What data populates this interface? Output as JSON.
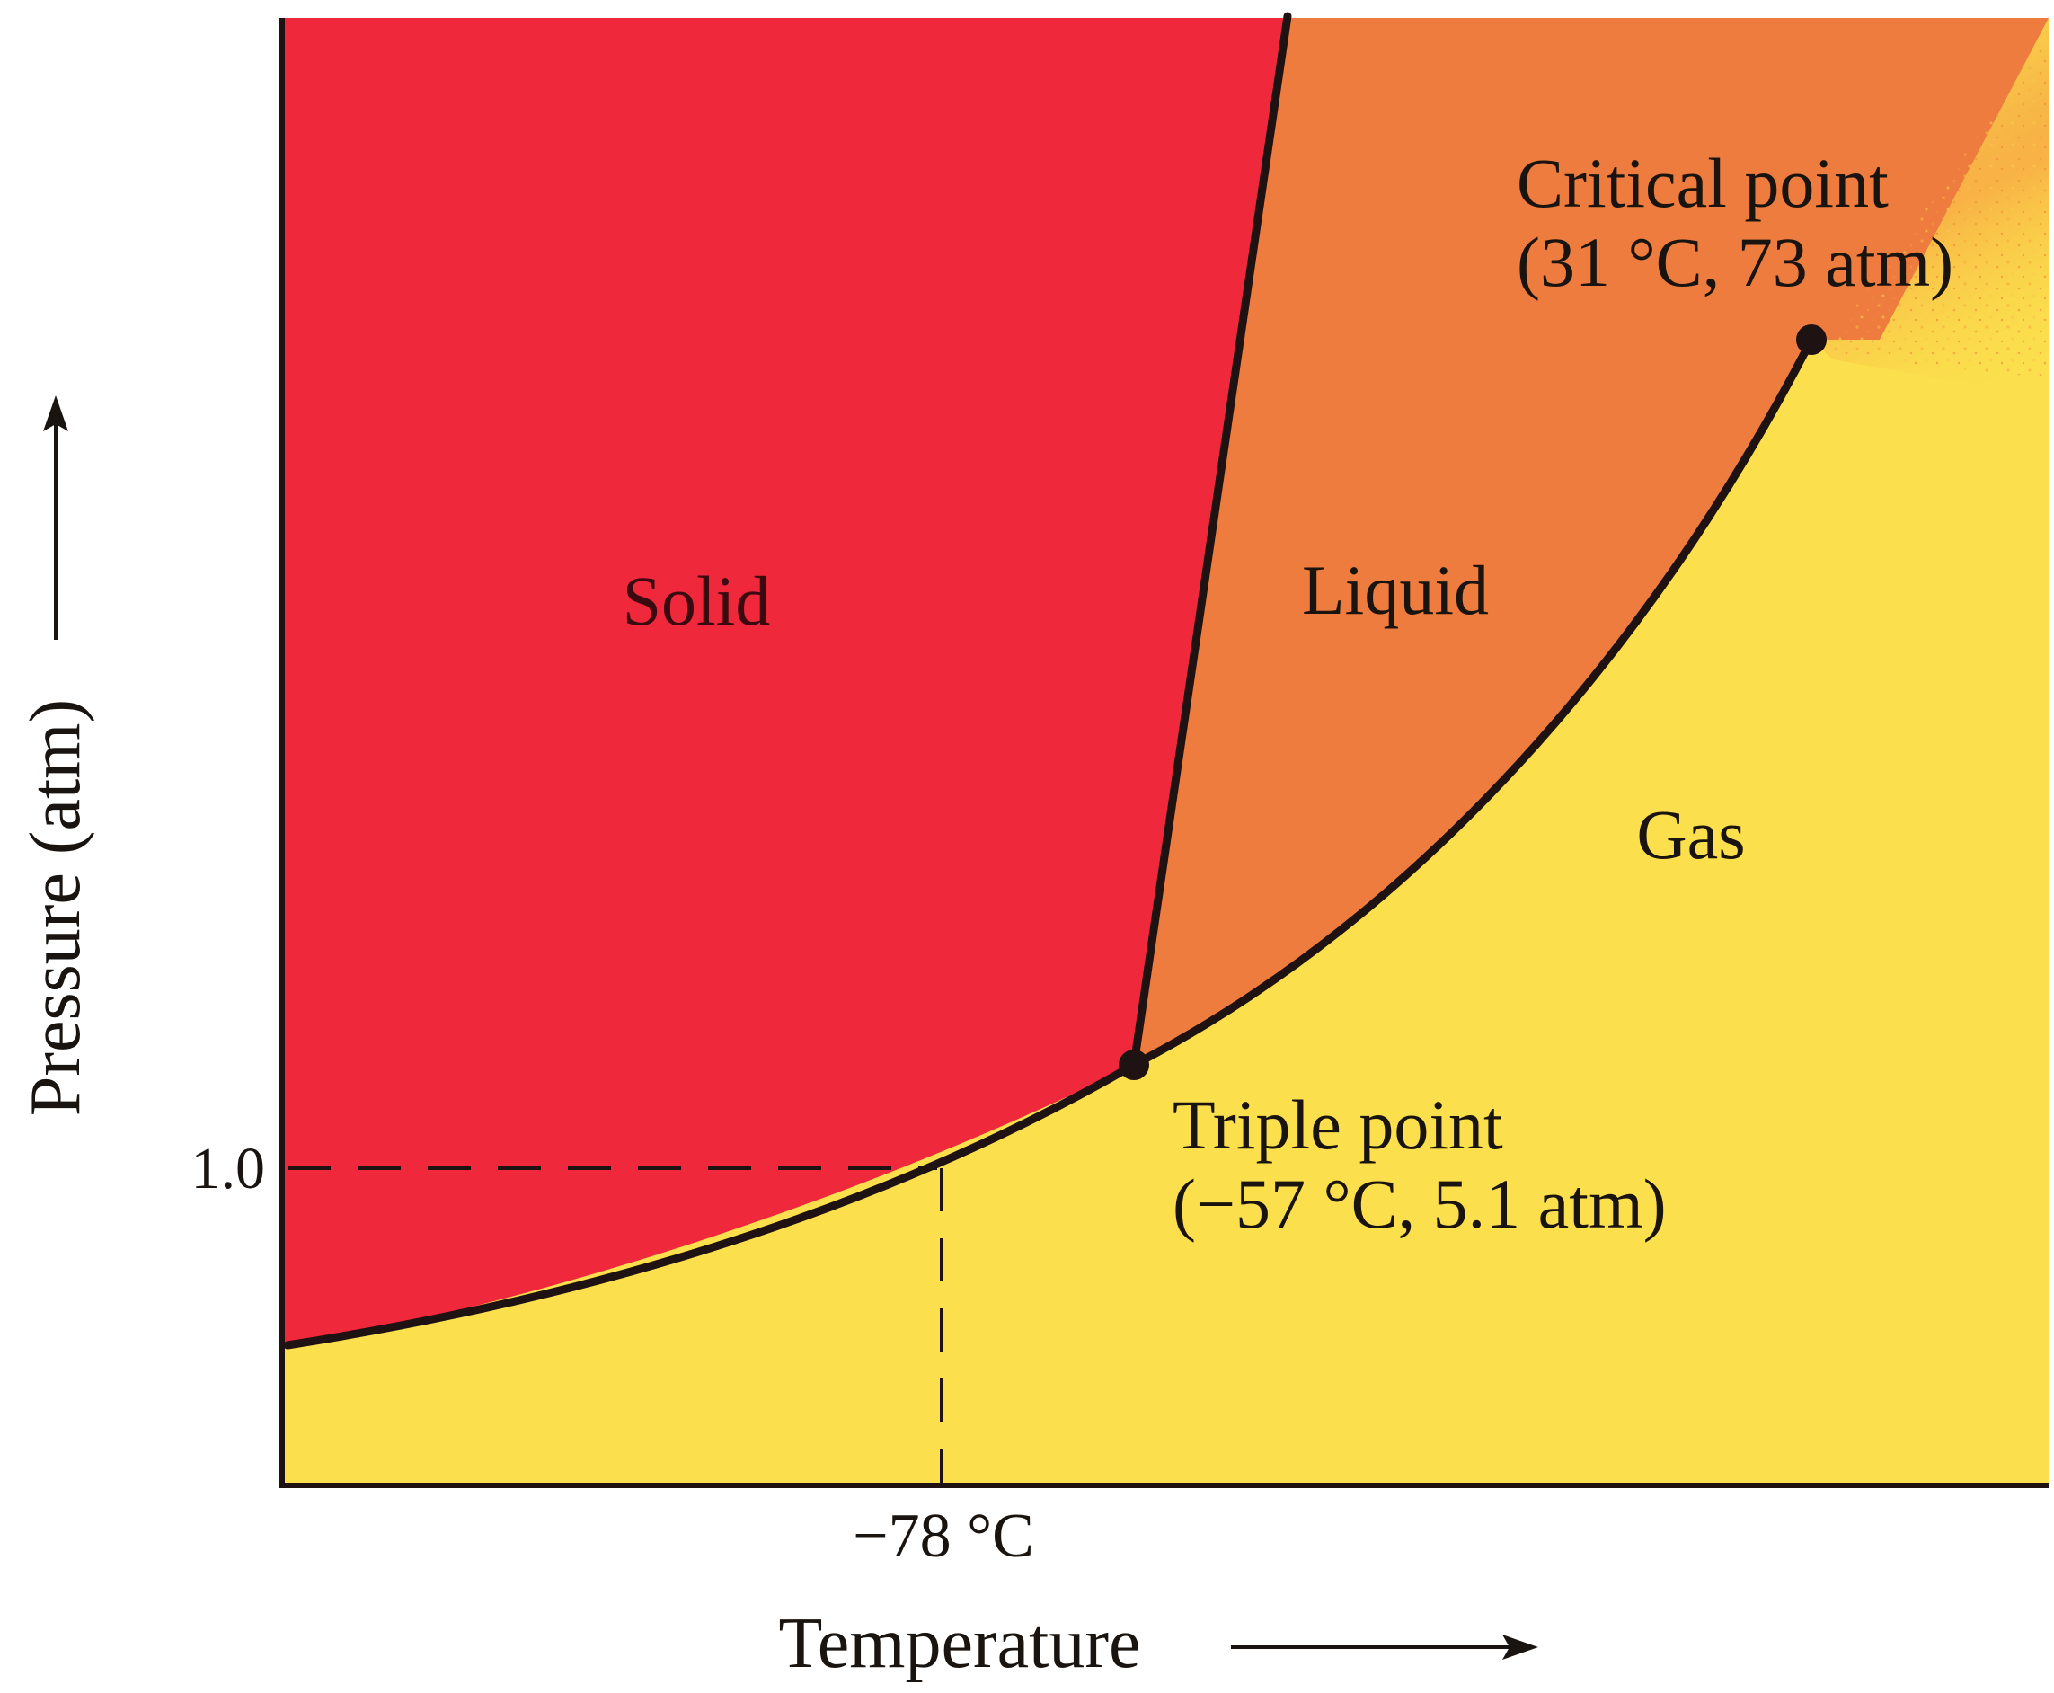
{
  "colors": {
    "solid": "#f0283c",
    "liquid": "#ee7c3e",
    "gas": "#fbdf4c",
    "line": "#1e1212",
    "label_on_solid": "#3a0a10",
    "label_dark": "#1a1410",
    "background": "#ffffff"
  },
  "regions": {
    "solid": "Solid",
    "liquid": "Liquid",
    "gas": "Gas"
  },
  "critical_point": {
    "name": "Critical point",
    "coords": "(31 °C, 73 atm)"
  },
  "triple_point": {
    "name": "Triple point",
    "coords": "(−57 °C, 5.1 atm)"
  },
  "axes": {
    "x_label": "Temperature",
    "y_label": "Pressure (atm)",
    "x_tick": "−78 °C",
    "y_tick": "1.0"
  }
}
